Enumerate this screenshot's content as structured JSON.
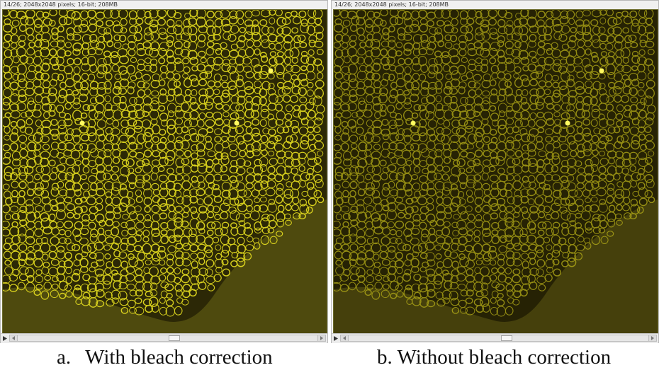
{
  "panels": [
    {
      "status": "14/26; 2048x2048 pixels; 16-bit; 208MB",
      "caption_letter": "a.",
      "caption_text": "With bleach correction",
      "bright": true
    },
    {
      "status": "14/26; 2048x2048 pixels; 16-bit; 208MB",
      "caption_letter": "b.",
      "caption_text": "Without bleach correction",
      "bright": false
    }
  ],
  "colors": {
    "cell_wall_bright": "#e8e020",
    "cell_wall_dim": "#b8b018",
    "background_bright": "#2c2806",
    "background_dim": "#262204",
    "lower_region": "#5a5512"
  },
  "icons": {
    "play": "play-icon",
    "scroll_left": "arrow-left-icon",
    "scroll_right": "arrow-right-icon"
  }
}
